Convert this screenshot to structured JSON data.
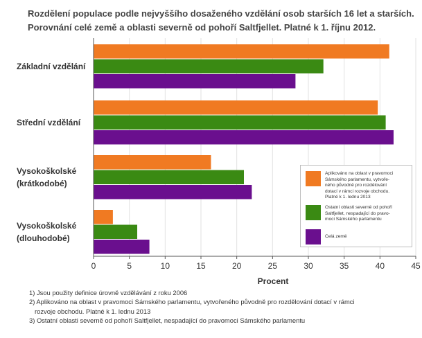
{
  "title_lines": [
    "Rozdělení populace podle nejvyššího dosaženého vzdělání osob starších 16 let a starších.",
    "Porovnání celé země a oblasti severně od pohoří Saltfjellet. Platné k 1. říjnu 2012."
  ],
  "chart_data": {
    "type": "bar",
    "orientation": "horizontal",
    "title": "Rozdělení populace podle nejvyššího dosaženého vzdělání osob starších 16 let a starších. Porovnání celé země a oblasti severně od pohoří Saltfjellet. Platné k 1. říjnu 2012.",
    "categories": [
      [
        "Základní vzdělání"
      ],
      [
        "Střední vzdělání"
      ],
      [
        "Vysokoškolské",
        "(krátkodobé)"
      ],
      [
        "Vysokoškolské",
        "(dlouhodobé)"
      ]
    ],
    "series": [
      {
        "name": "Aplikováno na oblast v pravomoci Sámského parlamentu, vytvořeného původně pro rozdělování dotací v rámci rozvoje obchodu. Platné k 1. lednu 2013",
        "color": "#f07a22",
        "values": [
          41.3,
          39.7,
          16.4,
          2.7
        ]
      },
      {
        "name": "Ostatní oblasti severně od pohoří Saltfjellet, nespadající do pravomoci Sámského parlamentu",
        "color": "#3a8a13",
        "values": [
          32.1,
          40.8,
          21.0,
          6.1
        ]
      },
      {
        "name": "Celá země",
        "color": "#6a0f8e",
        "values": [
          28.2,
          41.9,
          22.1,
          7.8
        ]
      }
    ],
    "xlabel": "Procent",
    "ylabel": "",
    "xlim": [
      0,
      45
    ],
    "xticks": [
      0,
      5,
      10,
      15,
      20,
      25,
      30,
      35,
      40,
      45
    ],
    "grid": "vertical",
    "legend": "right"
  },
  "legend": [
    {
      "lines": [
        "Aplikováno na oblast v pravomoci",
        "Sámského parlamentu, vytvoře-",
        "ného původně pro rozdělování",
        "dotací v rámci rozvoje obchodu.",
        "Platné k 1. lednu 2013"
      ],
      "color": "#f07a22"
    },
    {
      "lines": [
        "Ostatní oblasti severně od pohoří",
        "Saltfjellet, nespadající do pravo-",
        "moci Sámského parlamentu"
      ],
      "color": "#3a8a13"
    },
    {
      "lines": [
        "Celá země"
      ],
      "color": "#6a0f8e"
    }
  ],
  "footnotes": [
    "1) Jsou použity definice úrovně vzdělávání z roku 2006",
    "2) Aplikováno na oblast v pravomoci Sámského parlamentu, vytvořeného původně pro rozdělování dotací v rámci",
    "rozvoje obchodu. Platné k 1. lednu 2013",
    "3) Ostatní oblasti severně od pohoří Saltfjellet, nespadající do pravomoci Sámského parlamentu"
  ]
}
